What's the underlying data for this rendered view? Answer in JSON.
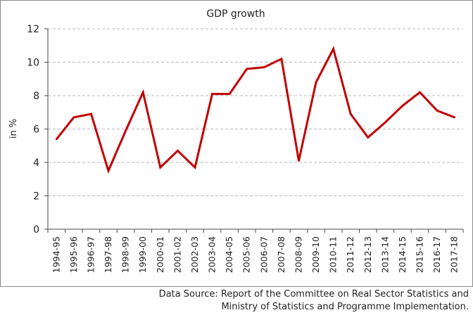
{
  "chart_data": {
    "type": "line",
    "title": "GDP growth",
    "ylabel": "in %",
    "xlabel": "",
    "ylim": [
      0,
      12
    ],
    "yticks": [
      0,
      2,
      4,
      6,
      8,
      10,
      12
    ],
    "grid": "horizontal dashed",
    "legend": "none",
    "line_color": "#c00000",
    "categories": [
      "1994-95",
      "1995-96",
      "1996-97",
      "1997-98",
      "1998-99",
      "1999-00",
      "2000-01",
      "2001-02",
      "2002-03",
      "2003-04",
      "2004-05",
      "2005-06",
      "2006-07",
      "2007-08",
      "2008-09",
      "2009-10",
      "2010-11",
      "2011-12",
      "2012-13",
      "2013-14",
      "2014-15",
      "2015-16",
      "2016-17",
      "2017-18"
    ],
    "series": [
      {
        "values": [
          5.4,
          6.7,
          6.9,
          3.5,
          5.9,
          8.2,
          3.7,
          4.7,
          3.7,
          8.1,
          8.1,
          9.6,
          9.7,
          10.2,
          4.1,
          8.8,
          10.8,
          6.9,
          5.5,
          6.4,
          7.4,
          8.2,
          7.1,
          6.7
        ]
      }
    ]
  },
  "source": {
    "line1": "Data Source: Report of the Committee on Real Sector Statistics and",
    "line2": "Ministry of Statistics and Programme Implementation."
  }
}
